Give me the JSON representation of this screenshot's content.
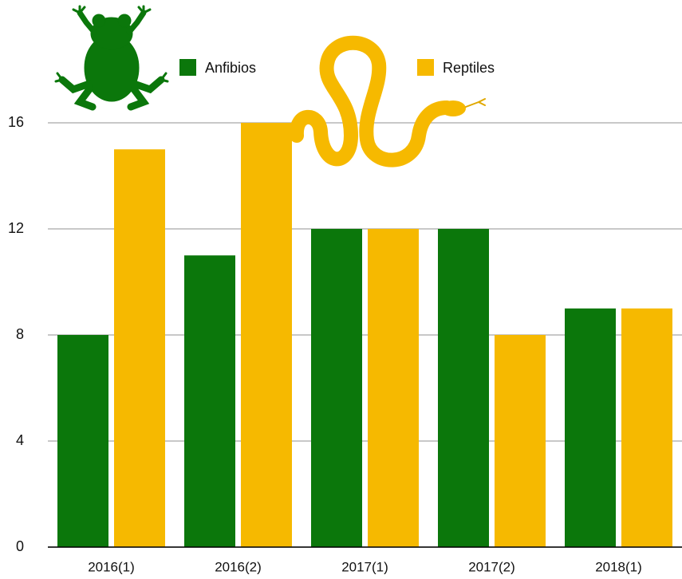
{
  "chart_data": {
    "type": "bar",
    "categories": [
      "2016(1)",
      "2016(2)",
      "2017(1)",
      "2017(2)",
      "2018(1)"
    ],
    "series": [
      {
        "name": "Anfibios",
        "color": "#0b770b",
        "values": [
          8,
          11,
          12,
          12,
          9
        ]
      },
      {
        "name": "Reptiles",
        "color": "#f6b900",
        "values": [
          15,
          16,
          12,
          8,
          9
        ]
      }
    ],
    "ylim": [
      0,
      16
    ],
    "yticks": [
      0,
      4,
      8,
      12,
      16
    ],
    "grid": true
  }
}
